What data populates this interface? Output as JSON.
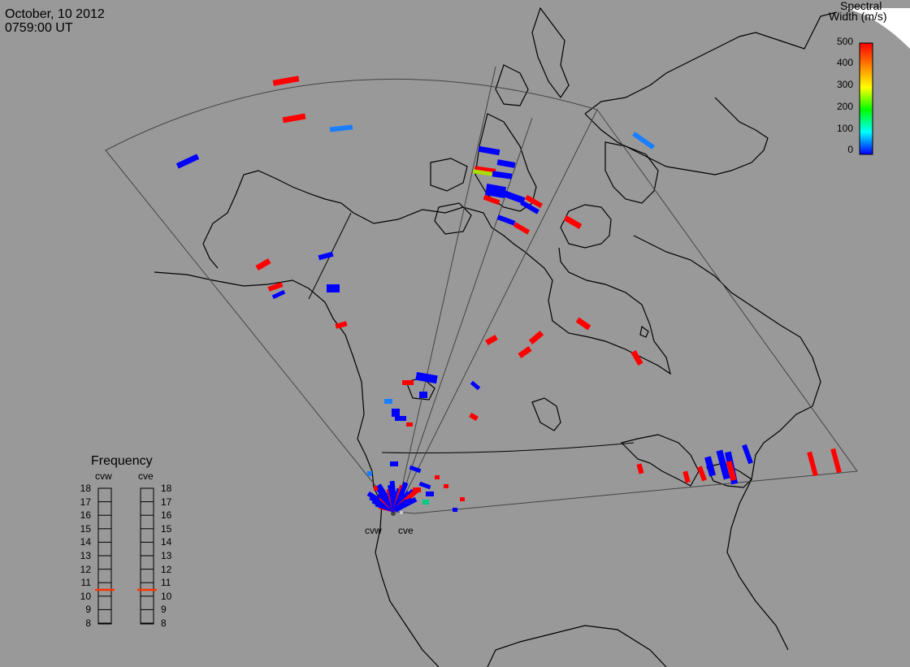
{
  "header": {
    "date": "October, 10 2012",
    "time": "0759:00 UT"
  },
  "colorbar": {
    "title_line1": "Spectral",
    "title_line2": "Width (m/s)",
    "ticks": [
      "500",
      "400",
      "300",
      "200",
      "100",
      "0"
    ],
    "range": [
      0,
      500
    ],
    "gradient": [
      "#0000ff",
      "#00ffff",
      "#00ff00",
      "#ffff00",
      "#ff8000",
      "#ff0000"
    ]
  },
  "frequency_panel": {
    "title": "Frequency",
    "radars": [
      {
        "code": "cvw",
        "value_mhz": 10.8,
        "marker_color": "#ff3300"
      },
      {
        "code": "cve",
        "value_mhz": 10.8,
        "marker_color": "#ff3300"
      }
    ],
    "scale": [
      "18",
      "17",
      "16",
      "15",
      "14",
      "13",
      "12",
      "11",
      "10",
      "9",
      "8"
    ]
  },
  "sites": {
    "west_label": "cvw",
    "east_label": "cve"
  },
  "colors": {
    "background": "#999999",
    "coast": "#000000",
    "fov": "#444444",
    "red": "#ff0000",
    "blue": "#0000ff",
    "lightblue": "#1a7fff"
  }
}
